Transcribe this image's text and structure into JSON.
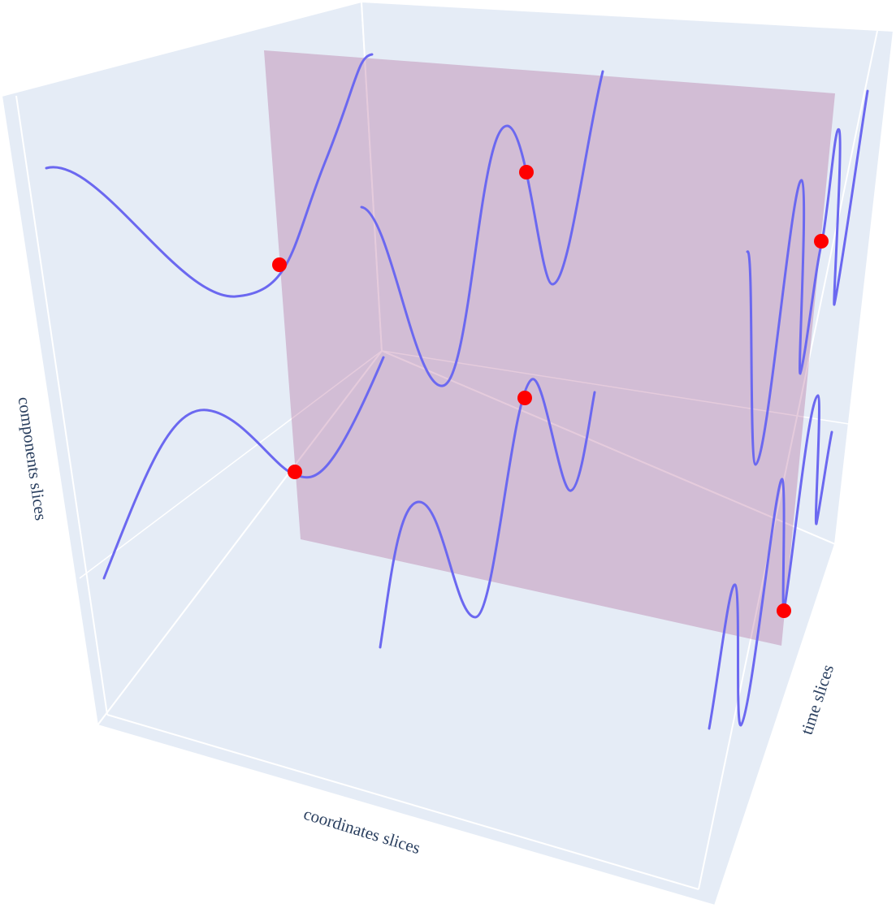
{
  "chart_data": {
    "type": "scatter3d",
    "xaxis_title": "coordinates slices",
    "yaxis_title": "time slices",
    "zaxis_title": "components slices"
  }
}
